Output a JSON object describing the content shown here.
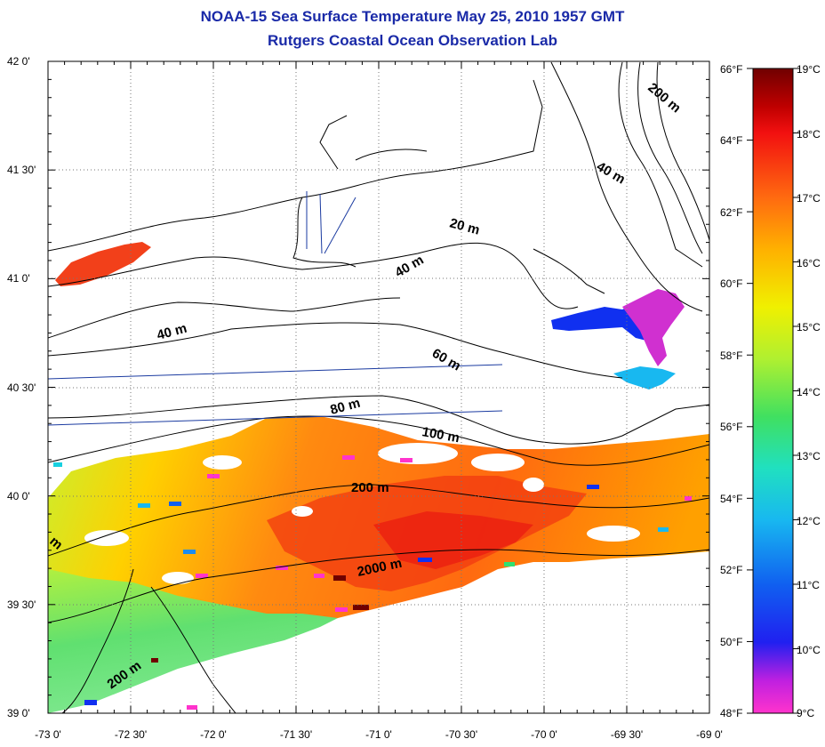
{
  "title": "NOAA-15 Sea Surface Temperature May 25, 2010 1957 GMT",
  "subtitle": "Rutgers Coastal Ocean Observation Lab",
  "lat_ticks": [
    "42 0'",
    "41 30'",
    "41 0'",
    "40 30'",
    "40 0'",
    "39 30'",
    "39 0'"
  ],
  "lon_ticks": [
    "-73 0'",
    "-72 30'",
    "-72 0'",
    "-71 30'",
    "-71 0'",
    "-70 30'",
    "-70 0'",
    "-69 30'",
    "-69 0'"
  ],
  "depth_labels": [
    "200 m",
    "40 m",
    "20 m",
    "40 m",
    "40 m",
    "60 m",
    "80 m",
    "100 m",
    "200 m",
    "2000 m",
    "200 m",
    "m"
  ],
  "colorbar": {
    "fahrenheit": [
      "66°F",
      "64°F",
      "62°F",
      "60°F",
      "58°F",
      "56°F",
      "54°F",
      "52°F",
      "50°F",
      "48°F"
    ],
    "celsius": [
      "19°C",
      "18°C",
      "17°C",
      "16°C",
      "15°C",
      "14°C",
      "13°C",
      "12°C",
      "11°C",
      "10°C",
      "9°C"
    ],
    "colors": [
      "#ff33cc",
      "#8a1fe0",
      "#1030f0",
      "#1a8cf0",
      "#18d0e0",
      "#30e070",
      "#a8f030",
      "#f0f000",
      "#ffb000",
      "#ff6a10",
      "#f21010",
      "#700000"
    ]
  },
  "palette": {
    "frame": "#000000",
    "title_color": "#1a2aa8",
    "line_blue": "#1a3aa0"
  }
}
